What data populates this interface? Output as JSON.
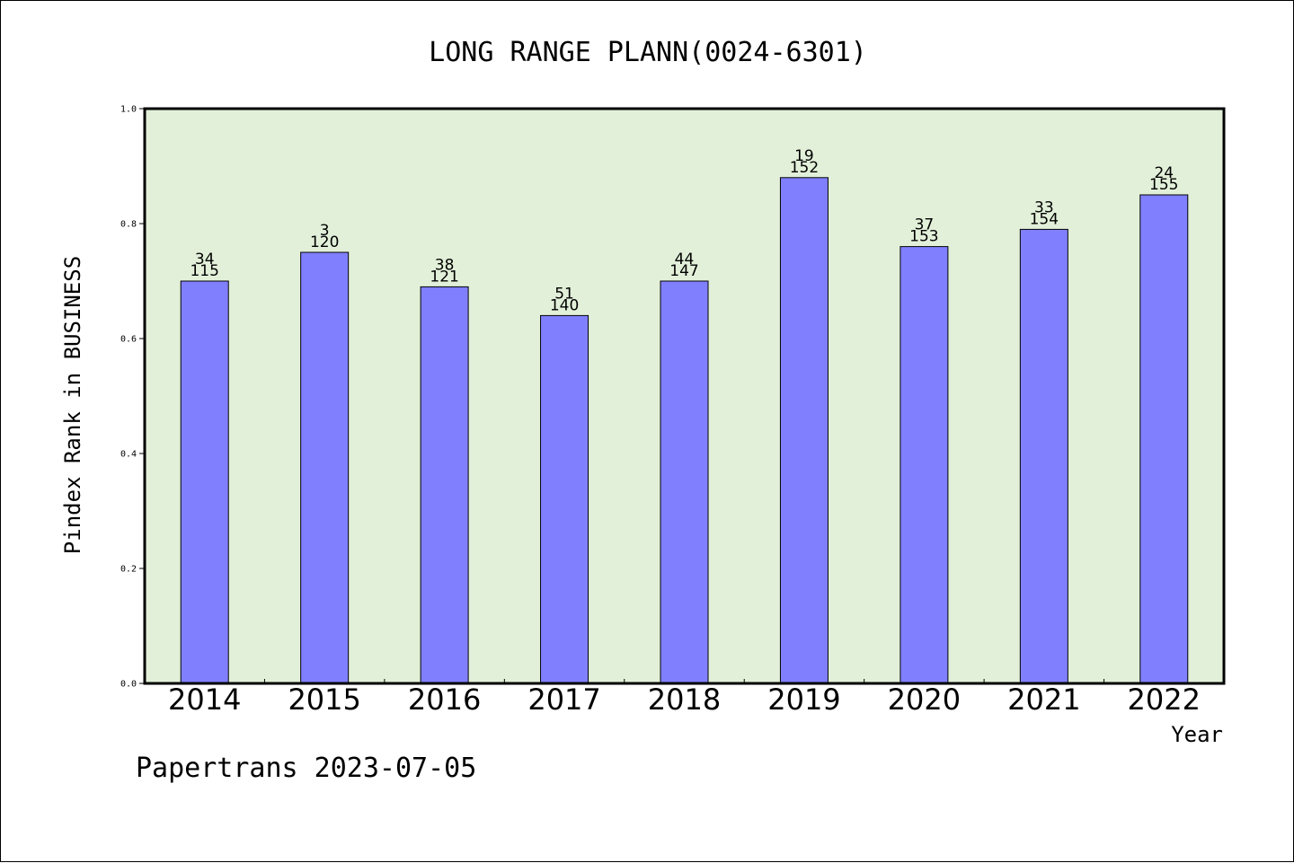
{
  "chart_data": {
    "type": "bar",
    "title": "LONG RANGE PLANN(0024-6301)",
    "ylabel": "Pindex Rank in BUSINESS",
    "xlabel": "Year",
    "categories": [
      "2014",
      "2015",
      "2016",
      "2017",
      "2018",
      "2019",
      "2020",
      "2021",
      "2022"
    ],
    "values": [
      0.7,
      0.75,
      0.69,
      0.64,
      0.7,
      0.88,
      0.76,
      0.79,
      0.85
    ],
    "rank_labels": [
      "34",
      "3",
      "38",
      "51",
      "44",
      "19",
      "37",
      "33",
      "24"
    ],
    "total_labels": [
      "115",
      "120",
      "121",
      "140",
      "147",
      "152",
      "153",
      "154",
      "155"
    ],
    "ylim": [
      0,
      1.0
    ],
    "yticks": [
      "0.0",
      "0.2",
      "0.4",
      "0.6",
      "0.8",
      "1.0"
    ],
    "grid": false,
    "colors": {
      "bar": "#8080ff",
      "plot_bg": "#e2f0d9"
    }
  },
  "footer": "Papertrans 2023-07-05"
}
